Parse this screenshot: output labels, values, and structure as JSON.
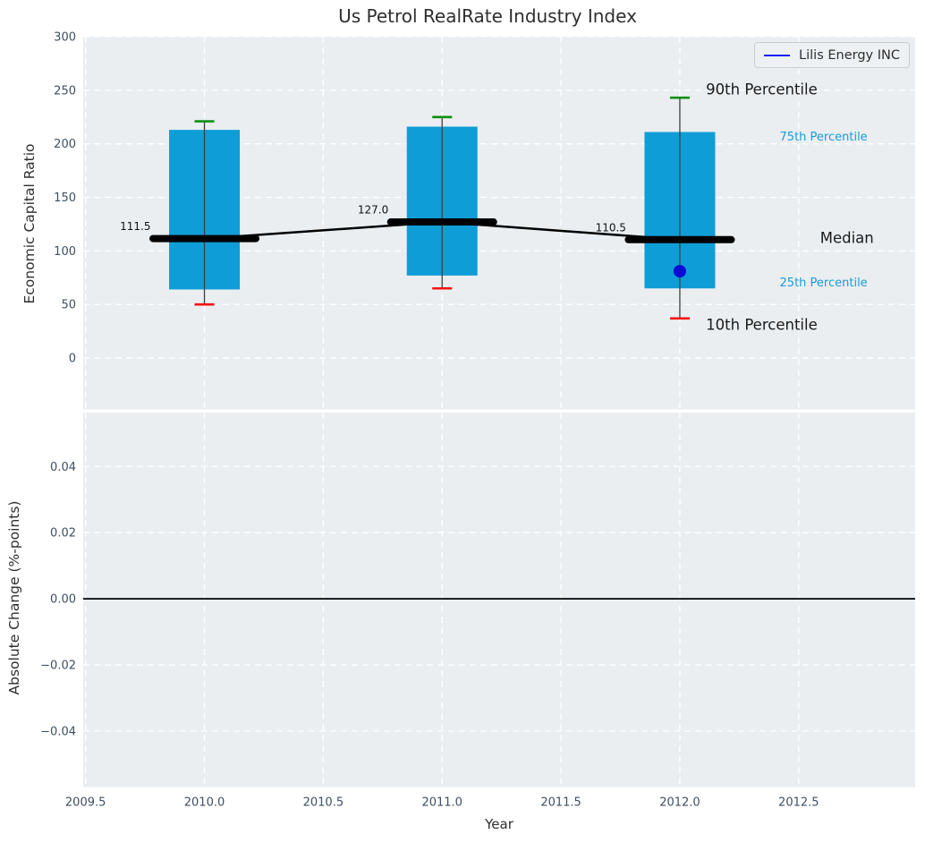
{
  "legend": {
    "label": "Lilis Energy INC"
  },
  "colors": {
    "box_fill": "#0f9dd7",
    "median_line": "#000000",
    "whisker": "#3f3f3f",
    "cap_90th": "#0a8f0a",
    "cap_10th": "#f31212",
    "company_point": "#0b0bd6",
    "legend_line": "#1919ff",
    "axes_bg": "#eaeef1",
    "grid": "#ffffff",
    "tick_text": "#3d4f63",
    "annotation_blue": "#189cd8",
    "annotation_dark": "#1a1a1a",
    "median_value_text": "#111111",
    "title_text": "#2e2e2e",
    "zero_line": "#000000"
  },
  "chart_data": {
    "type": "boxplot",
    "title": "Us Petrol RealRate Industry Index",
    "xlabel": "Year",
    "xlim": [
      2009.49,
      2012.99
    ],
    "xticks": [
      2009.5,
      2010.0,
      2010.5,
      2011.0,
      2011.5,
      2012.0,
      2012.5
    ],
    "xtick_labels": [
      "2009.5",
      "2010.0",
      "2010.5",
      "2011.0",
      "2011.5",
      "2012.0",
      "2012.5"
    ],
    "top": {
      "ylabel": "Economic Capital Ratio",
      "ylim": [
        -48,
        300
      ],
      "yticks": [
        0,
        50,
        100,
        150,
        200,
        250,
        300
      ],
      "ytick_labels": [
        "0",
        "50",
        "100",
        "150",
        "200",
        "250",
        "300"
      ],
      "grid": true,
      "boxes": [
        {
          "year": 2010,
          "p10": 50,
          "p25": 64,
          "median": 111.5,
          "p75": 213,
          "p90": 221,
          "median_label": "111.5"
        },
        {
          "year": 2011,
          "p10": 65,
          "p25": 77,
          "median": 127.0,
          "p75": 216,
          "p90": 225,
          "median_label": "127.0"
        },
        {
          "year": 2012,
          "p10": 37,
          "p25": 65,
          "median": 110.5,
          "p75": 211,
          "p90": 243,
          "median_label": "110.5"
        }
      ],
      "company_series": {
        "name": "Lilis Energy INC",
        "points": [
          {
            "year": 2012,
            "value": 81
          }
        ]
      },
      "annotations": [
        {
          "text": "90th Percentile",
          "year": 2012.11,
          "value": 250,
          "size": 16.5,
          "color_key": "annotation_dark"
        },
        {
          "text": "75th Percentile",
          "year": 2012.42,
          "value": 206,
          "size": 13,
          "color_key": "annotation_blue"
        },
        {
          "text": "Median",
          "year": 2012.59,
          "value": 111,
          "size": 16.5,
          "color_key": "annotation_dark"
        },
        {
          "text": "25th Percentile",
          "year": 2012.42,
          "value": 70,
          "size": 13,
          "color_key": "annotation_blue"
        },
        {
          "text": "10th Percentile",
          "year": 2012.11,
          "value": 30,
          "size": 16.5,
          "color_key": "annotation_dark"
        }
      ]
    },
    "bottom": {
      "ylabel": "Absolute Change (%-points)",
      "ylim": [
        -0.0569,
        0.0563
      ],
      "yticks": [
        -0.04,
        -0.02,
        0.0,
        0.02,
        0.04
      ],
      "ytick_labels": [
        "−0.04",
        "−0.02",
        "0.00",
        "0.02",
        "0.04"
      ],
      "grid": true,
      "zero_line_y": 0.0
    }
  }
}
